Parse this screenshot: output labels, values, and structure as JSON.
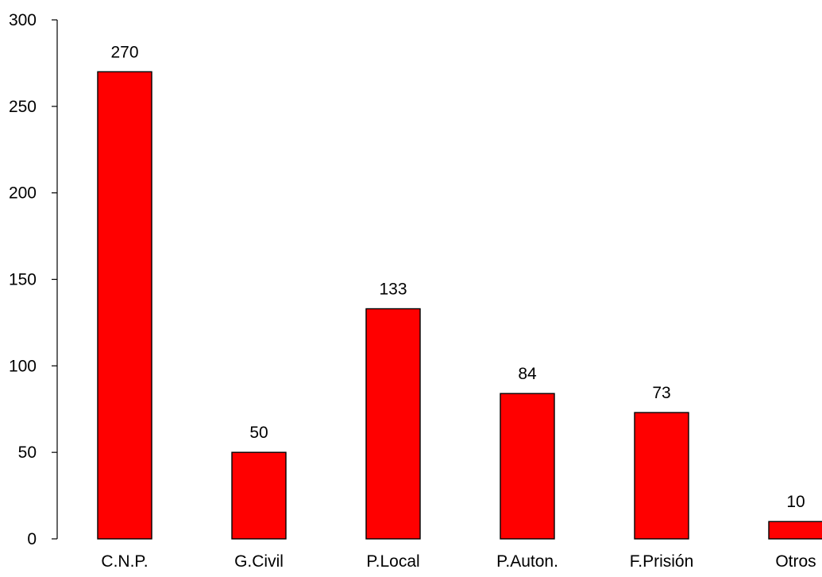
{
  "chart_data": {
    "type": "bar",
    "categories": [
      "C.N.P.",
      "G.Civil",
      "P.Local",
      "P.Auton.",
      "F.Prisión",
      "Otros"
    ],
    "values": [
      270,
      50,
      133,
      84,
      73,
      10
    ],
    "data_labels": [
      "270",
      "50",
      "133",
      "84",
      "73",
      "10"
    ],
    "title": "",
    "xlabel": "",
    "ylabel": "",
    "ylim": [
      0,
      300
    ],
    "yticks": [
      0,
      50,
      100,
      150,
      200,
      250,
      300
    ],
    "grid": false,
    "legend": "none",
    "bar_color": "#ff0000",
    "bar_outline_color": "#000000"
  }
}
